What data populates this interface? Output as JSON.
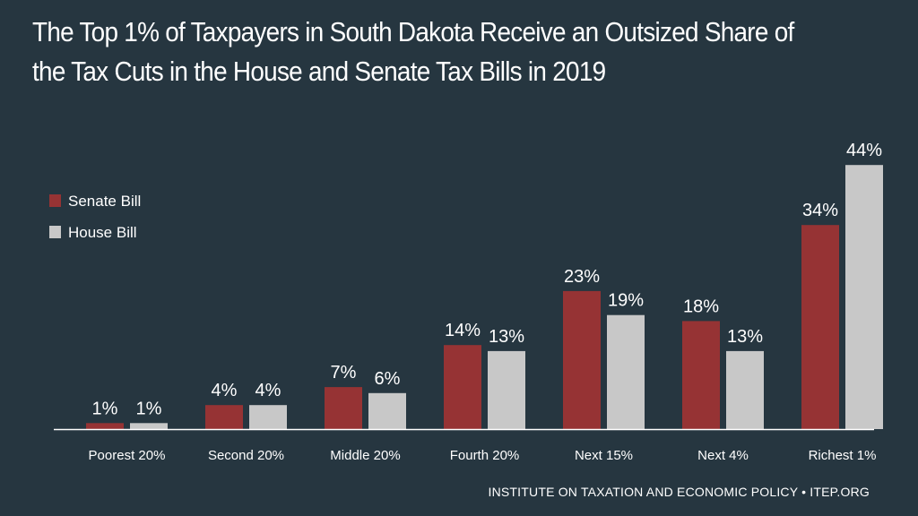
{
  "title": "The Top 1% of Taxpayers in South Dakota Receive an Outsized Share of the Tax Cuts in the House and Senate Tax Bills in 2019",
  "source": "INSTITUTE ON TAXATION AND ECONOMIC POLICY • ITEP.ORG",
  "colors": {
    "background": "#263640",
    "senate": "#963334",
    "house": "#c8c8c8",
    "axis": "#ffffff",
    "text": "#ffffff"
  },
  "chart_data": {
    "type": "bar",
    "title": "The Top 1% of Taxpayers in South Dakota Receive an Outsized Share of the Tax Cuts in the House and Senate Tax Bills in 2019",
    "categories": [
      "Poorest 20%",
      "Second 20%",
      "Middle 20%",
      "Fourth 20%",
      "Next 15%",
      "Next 4%",
      "Richest 1%"
    ],
    "series": [
      {
        "name": "Senate Bill",
        "color": "#963334",
        "values": [
          1,
          4,
          7,
          14,
          23,
          18,
          34
        ],
        "labels": [
          "1%",
          "4%",
          "7%",
          "14%",
          "23%",
          "18%",
          "34%"
        ]
      },
      {
        "name": "House Bill",
        "color": "#c8c8c8",
        "values": [
          1,
          4,
          6,
          13,
          19,
          13,
          44
        ],
        "labels": [
          "1%",
          "4%",
          "6%",
          "13%",
          "19%",
          "13%",
          "44%"
        ]
      }
    ],
    "value_unit": "percent",
    "ylim": [
      0,
      44
    ],
    "grid": false,
    "legend_position": "top-left",
    "xlabel": "",
    "ylabel": ""
  }
}
